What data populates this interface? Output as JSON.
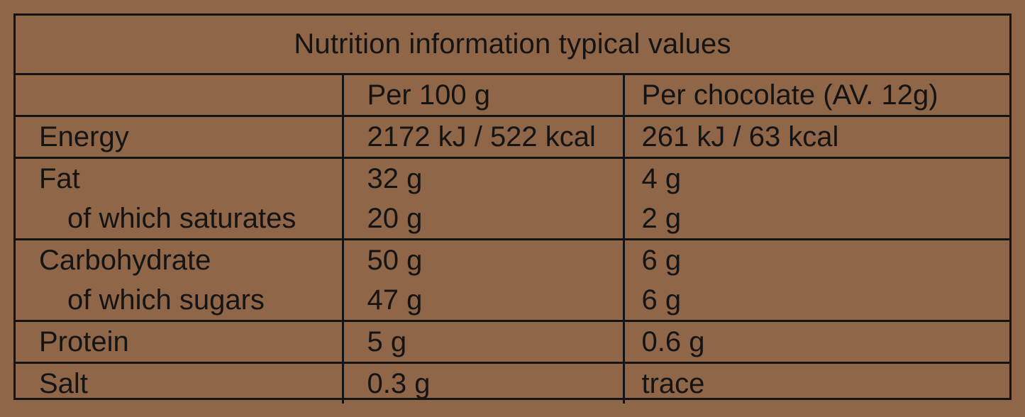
{
  "title": "Nutrition information typical values",
  "columns": {
    "per100": "Per 100 g",
    "perPiece": "Per chocolate (AV. 12g)"
  },
  "rows": [
    {
      "nutrient": "Energy",
      "per100": "2172 kJ / 522 kcal",
      "perPiece": "261 kJ / 63 kcal"
    },
    {
      "nutrient": "Fat",
      "per100": "32 g",
      "perPiece": "4 g",
      "sub": {
        "nutrient": "of which saturates",
        "per100": "20 g",
        "perPiece": "2 g"
      }
    },
    {
      "nutrient": "Carbohydrate",
      "per100": "50 g",
      "perPiece": "6 g",
      "sub": {
        "nutrient": "of which sugars",
        "per100": "47 g",
        "perPiece": "6 g"
      }
    },
    {
      "nutrient": "Protein",
      "per100": "5 g",
      "perPiece": "0.6 g"
    },
    {
      "nutrient": "Salt",
      "per100": "0.3 g",
      "perPiece": "trace"
    }
  ],
  "colors": {
    "background": "#8f6648",
    "ink": "#141414"
  }
}
